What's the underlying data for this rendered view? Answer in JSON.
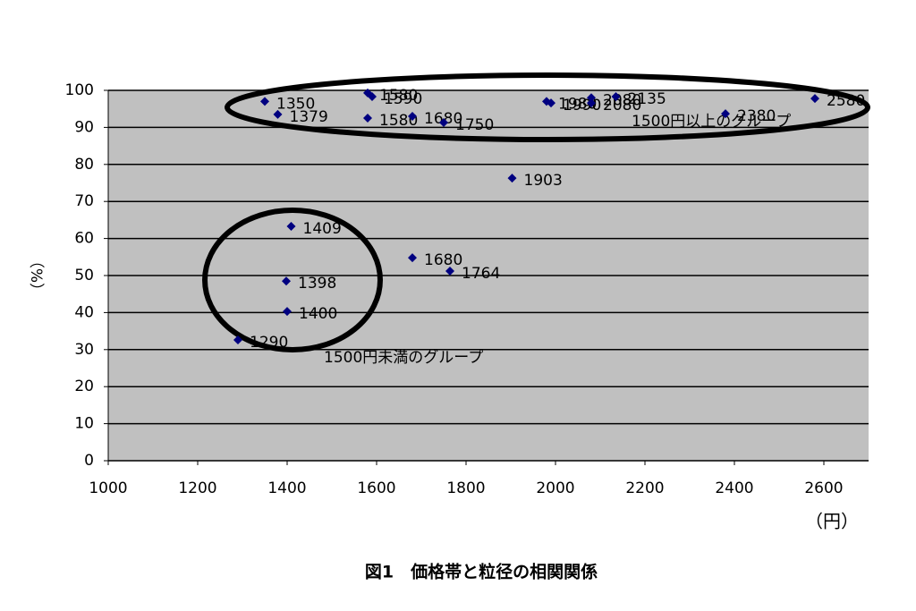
{
  "chart_data": {
    "type": "scatter",
    "title": "図1　価格帯と粒径の相関関係",
    "x_label": "（円）",
    "y_label": "（%）",
    "annotations": [
      "1500円以上のグループ",
      "1500円未満のグループ"
    ],
    "color": "#000080",
    "x": [
      1350,
      1379,
      1290,
      1409,
      1398,
      1400,
      1580,
      1590,
      1580,
      1680,
      1750,
      1680,
      1764,
      1903,
      1980,
      1990,
      2080,
      2080,
      2135,
      2380,
      2580
    ],
    "values": [
      97,
      93.5,
      32.6,
      63.3,
      48.5,
      40.3,
      99.3,
      98.3,
      92.5,
      93,
      91.3,
      54.8,
      51.2,
      76.3,
      97,
      96.6,
      98,
      96.6,
      98.3,
      93.7,
      97.8
    ],
    "xlim": [
      1000,
      2700
    ],
    "ylim": [
      0,
      100
    ],
    "xticks": [
      1000,
      1200,
      1400,
      1600,
      1800,
      2000,
      2200,
      2400,
      2600
    ],
    "yticks": [
      0,
      10,
      20,
      30,
      40,
      50,
      60,
      70,
      80,
      90,
      100
    ],
    "grid": true
  }
}
